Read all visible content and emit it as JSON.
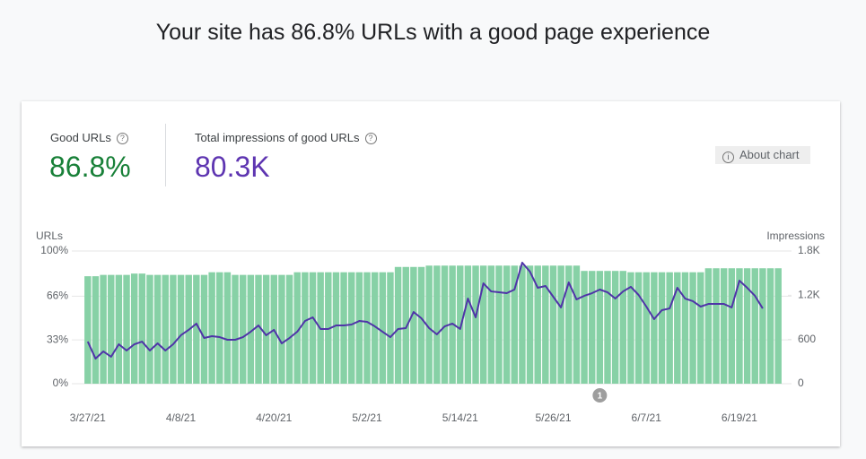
{
  "header": {
    "title": "Your site has 86.8% URLs with a good page experience"
  },
  "summary": {
    "good_urls": {
      "label": "Good URLs",
      "value": "86.8%"
    },
    "impressions": {
      "label": "Total impressions of good URLs",
      "value": "80.3K"
    }
  },
  "about_chart": "About chart",
  "chart_data": {
    "type": "bar",
    "y_label": "URLs",
    "y2_label": "Impressions",
    "categories": [
      "3/27/21",
      null,
      null,
      null,
      null,
      null,
      null,
      null,
      null,
      null,
      null,
      null,
      "4/8/21",
      null,
      null,
      null,
      null,
      null,
      null,
      null,
      null,
      null,
      null,
      null,
      "4/20/21",
      null,
      null,
      null,
      null,
      null,
      null,
      null,
      null,
      null,
      null,
      null,
      "5/2/21",
      null,
      null,
      null,
      null,
      null,
      null,
      null,
      null,
      null,
      null,
      null,
      "5/14/21",
      null,
      null,
      null,
      null,
      null,
      null,
      null,
      null,
      null,
      null,
      null,
      "5/26/21",
      null,
      null,
      null,
      null,
      null,
      null,
      null,
      null,
      null,
      null,
      null,
      "6/7/21",
      null,
      null,
      null,
      null,
      null,
      null,
      null,
      null,
      null,
      null,
      null,
      "6/19/21",
      null,
      null,
      null,
      null,
      null
    ],
    "series": [
      {
        "type": "bar",
        "color": "#87d1a6",
        "values": [
          81,
          81,
          82,
          82,
          82,
          82,
          83,
          83,
          82,
          82,
          82,
          82,
          82,
          82,
          82,
          82,
          84,
          84,
          84,
          82,
          82,
          82,
          82,
          82,
          82,
          82,
          82,
          84,
          84,
          84,
          84,
          84,
          84,
          84,
          84,
          84,
          84,
          84,
          84,
          84,
          88,
          88,
          88,
          88,
          89,
          89,
          89,
          89,
          89,
          89,
          89,
          89,
          89,
          89,
          89,
          89,
          89,
          89,
          89,
          89,
          89,
          89,
          89,
          89,
          85,
          85,
          85,
          85,
          85,
          85,
          84,
          84,
          84,
          84,
          84,
          84,
          84,
          84,
          84,
          84,
          87,
          87,
          87,
          87,
          87,
          87,
          87,
          87,
          87,
          87
        ]
      },
      {
        "type": "line",
        "axis": "y2",
        "color": "#4f34a8",
        "values": [
          571,
          340,
          438,
          365,
          535,
          450,
          535,
          571,
          450,
          547,
          450,
          535,
          657,
          730,
          815,
          620,
          645,
          632,
          596,
          596,
          632,
          705,
          790,
          657,
          730,
          547,
          620,
          705,
          851,
          900,
          742,
          742,
          790,
          790,
          803,
          851,
          839,
          778,
          705,
          632,
          742,
          754,
          973,
          888,
          754,
          669,
          778,
          815,
          742,
          1155,
          900,
          1362,
          1252,
          1240,
          1228,
          1277,
          1642,
          1520,
          1301,
          1326,
          1180,
          1034,
          1374,
          1143,
          1192,
          1228,
          1277,
          1240,
          1155,
          1252,
          1314,
          1204,
          1046,
          876,
          997,
          1021,
          1301,
          1155,
          1119,
          1046,
          1082,
          1082,
          1082,
          1034,
          1398,
          1301,
          1192,
          1021,
          null,
          null
        ]
      }
    ],
    "ylim": [
      0,
      100
    ],
    "yticks": [
      {
        "value": 0,
        "label": "0%"
      },
      {
        "value": 33,
        "label": "33%"
      },
      {
        "value": 66,
        "label": "66%"
      },
      {
        "value": 100,
        "label": "100%"
      }
    ],
    "y2lim": [
      0,
      1800
    ],
    "y2ticks": [
      0,
      600,
      {
        "value": 1200,
        "label": "1.2K"
      },
      {
        "value": 1800,
        "label": "1.8K"
      }
    ],
    "grid": true,
    "annotations": [
      {
        "label": "1",
        "index": 66
      }
    ]
  }
}
